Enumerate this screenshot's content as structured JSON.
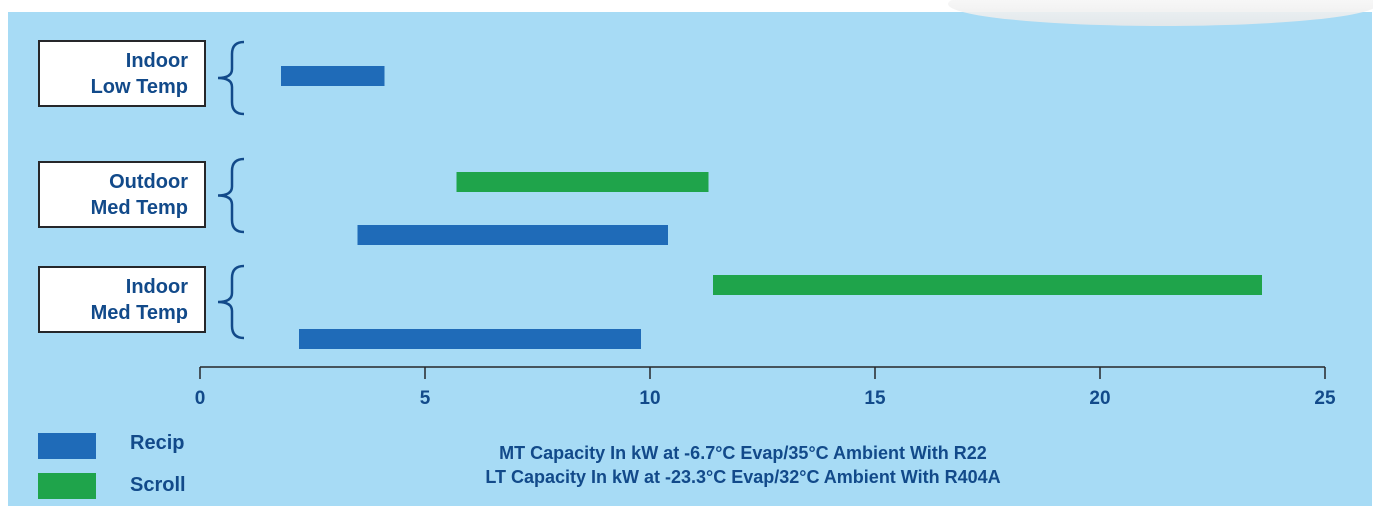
{
  "chart_data": {
    "type": "bar",
    "orientation": "horizontal-range",
    "categories": [
      {
        "line1": "Indoor",
        "line2": "Low Temp"
      },
      {
        "line1": "Outdoor",
        "line2": "Med Temp"
      },
      {
        "line1": "Indoor",
        "line2": "Med Temp"
      }
    ],
    "series": [
      {
        "name": "Recip",
        "color": "#1f6bb8",
        "ranges": [
          {
            "category": 0,
            "start": 1.8,
            "end": 4.1
          },
          {
            "category": 1,
            "start": 3.5,
            "end": 10.4
          },
          {
            "category": 2,
            "start": 2.2,
            "end": 9.8
          }
        ]
      },
      {
        "name": "Scroll",
        "color": "#1fa44b",
        "ranges": [
          {
            "category": 1,
            "start": 5.7,
            "end": 11.3
          },
          {
            "category": 2,
            "start": 11.4,
            "end": 23.6
          }
        ]
      }
    ],
    "xticks": [
      0,
      5,
      10,
      15,
      20,
      25
    ],
    "xlim": [
      0,
      25
    ],
    "xlabel_lines": [
      "MT Capacity In kW at -6.7°C Evap/35°C Ambient With R22",
      "LT Capacity In kW at -23.3°C Evap/32°C Ambient With R404A"
    ],
    "legend_position": "bottom-left",
    "grid": false
  },
  "colors": {
    "background": "#a7dbf5",
    "text": "#124a8a",
    "axis": "#26272a",
    "brace": "#124a8a"
  }
}
